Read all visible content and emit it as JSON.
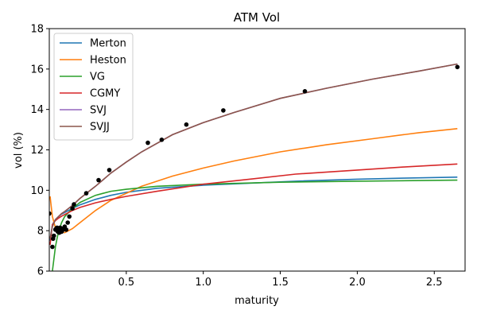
{
  "chart_data": {
    "type": "line",
    "title": "ATM Vol",
    "xlabel": "maturity",
    "ylabel": "vol (%)",
    "xlim": [
      0.0,
      2.7
    ],
    "ylim": [
      6,
      18
    ],
    "x_ticks": [
      "0.5",
      "1.0",
      "1.5",
      "2.0",
      "2.5"
    ],
    "y_ticks": [
      "6",
      "8",
      "10",
      "12",
      "14",
      "16",
      "18"
    ],
    "legend_position": "top-left",
    "grid": false,
    "series": [
      {
        "name": "Merton",
        "color": "#1f77b4",
        "x": [
          0.005,
          0.02,
          0.04,
          0.06,
          0.08,
          0.1,
          0.15,
          0.2,
          0.3,
          0.4,
          0.5,
          0.7,
          1.0,
          1.3,
          1.6,
          2.0,
          2.3,
          2.65
        ],
        "y": [
          7.5,
          8.3,
          8.55,
          8.7,
          8.82,
          8.9,
          9.1,
          9.28,
          9.55,
          9.75,
          9.9,
          10.1,
          10.25,
          10.35,
          10.45,
          10.55,
          10.6,
          10.65
        ]
      },
      {
        "name": "Heston",
        "color": "#ff7f0e",
        "x": [
          0.005,
          0.02,
          0.04,
          0.07,
          0.1,
          0.15,
          0.2,
          0.3,
          0.4,
          0.5,
          0.6,
          0.8,
          1.0,
          1.2,
          1.5,
          1.8,
          2.1,
          2.4,
          2.65
        ],
        "y": [
          9.7,
          8.7,
          8.15,
          7.95,
          7.9,
          8.1,
          8.4,
          9.0,
          9.5,
          9.85,
          10.2,
          10.7,
          11.1,
          11.45,
          11.9,
          12.25,
          12.55,
          12.85,
          13.05
        ]
      },
      {
        "name": "VG",
        "color": "#2ca02c",
        "x": [
          0.02,
          0.03,
          0.04,
          0.05,
          0.06,
          0.08,
          0.1,
          0.15,
          0.2,
          0.3,
          0.4,
          0.5,
          0.7,
          1.0,
          1.5,
          2.0,
          2.65
        ],
        "y": [
          6.0,
          6.6,
          7.2,
          7.6,
          7.95,
          8.4,
          8.7,
          9.1,
          9.4,
          9.75,
          9.95,
          10.05,
          10.2,
          10.3,
          10.4,
          10.45,
          10.5
        ]
      },
      {
        "name": "CGMY",
        "color": "#d62728",
        "x": [
          0.005,
          0.02,
          0.04,
          0.06,
          0.08,
          0.1,
          0.15,
          0.2,
          0.3,
          0.4,
          0.5,
          0.7,
          1.0,
          1.3,
          1.6,
          2.0,
          2.3,
          2.65
        ],
        "y": [
          7.3,
          8.3,
          8.5,
          8.62,
          8.72,
          8.8,
          9.0,
          9.15,
          9.38,
          9.55,
          9.7,
          9.95,
          10.3,
          10.55,
          10.8,
          11.0,
          11.15,
          11.3
        ]
      },
      {
        "name": "SVJ",
        "color": "#9467bd",
        "x": [
          0.005,
          0.02,
          0.04,
          0.06,
          0.08,
          0.1,
          0.15,
          0.2,
          0.3,
          0.4,
          0.5,
          0.6,
          0.8,
          1.0,
          1.2,
          1.5,
          1.8,
          2.1,
          2.4,
          2.65
        ],
        "y": [
          7.6,
          8.2,
          8.55,
          8.7,
          8.85,
          8.95,
          9.25,
          9.6,
          10.2,
          10.85,
          11.4,
          11.9,
          12.75,
          13.35,
          13.85,
          14.55,
          15.05,
          15.5,
          15.9,
          16.25
        ]
      },
      {
        "name": "SVJJ",
        "color": "#8c564b",
        "x": [
          0.005,
          0.02,
          0.04,
          0.06,
          0.08,
          0.1,
          0.15,
          0.2,
          0.3,
          0.4,
          0.5,
          0.6,
          0.8,
          1.0,
          1.2,
          1.5,
          1.8,
          2.1,
          2.4,
          2.65
        ],
        "y": [
          7.6,
          8.2,
          8.55,
          8.7,
          8.85,
          8.95,
          9.25,
          9.6,
          10.2,
          10.85,
          11.4,
          11.9,
          12.75,
          13.35,
          13.85,
          14.55,
          15.05,
          15.5,
          15.9,
          16.25
        ]
      }
    ],
    "market_points": {
      "color": "#000000",
      "x": [
        0.0,
        0.02,
        0.025,
        0.03,
        0.04,
        0.045,
        0.05,
        0.055,
        0.06,
        0.065,
        0.07,
        0.075,
        0.08,
        0.085,
        0.09,
        0.1,
        0.11,
        0.12,
        0.13,
        0.15,
        0.16,
        0.24,
        0.32,
        0.39,
        0.64,
        0.73,
        0.89,
        1.13,
        1.66,
        2.65
      ],
      "y": [
        8.85,
        7.2,
        7.6,
        7.75,
        8.05,
        8.1,
        8.15,
        7.95,
        8.05,
        7.9,
        8.15,
        8.0,
        7.95,
        8.1,
        8.05,
        8.2,
        8.05,
        8.4,
        8.7,
        9.1,
        9.3,
        9.85,
        10.5,
        11.0,
        12.35,
        12.5,
        13.25,
        13.95,
        14.9,
        16.1
      ]
    }
  }
}
